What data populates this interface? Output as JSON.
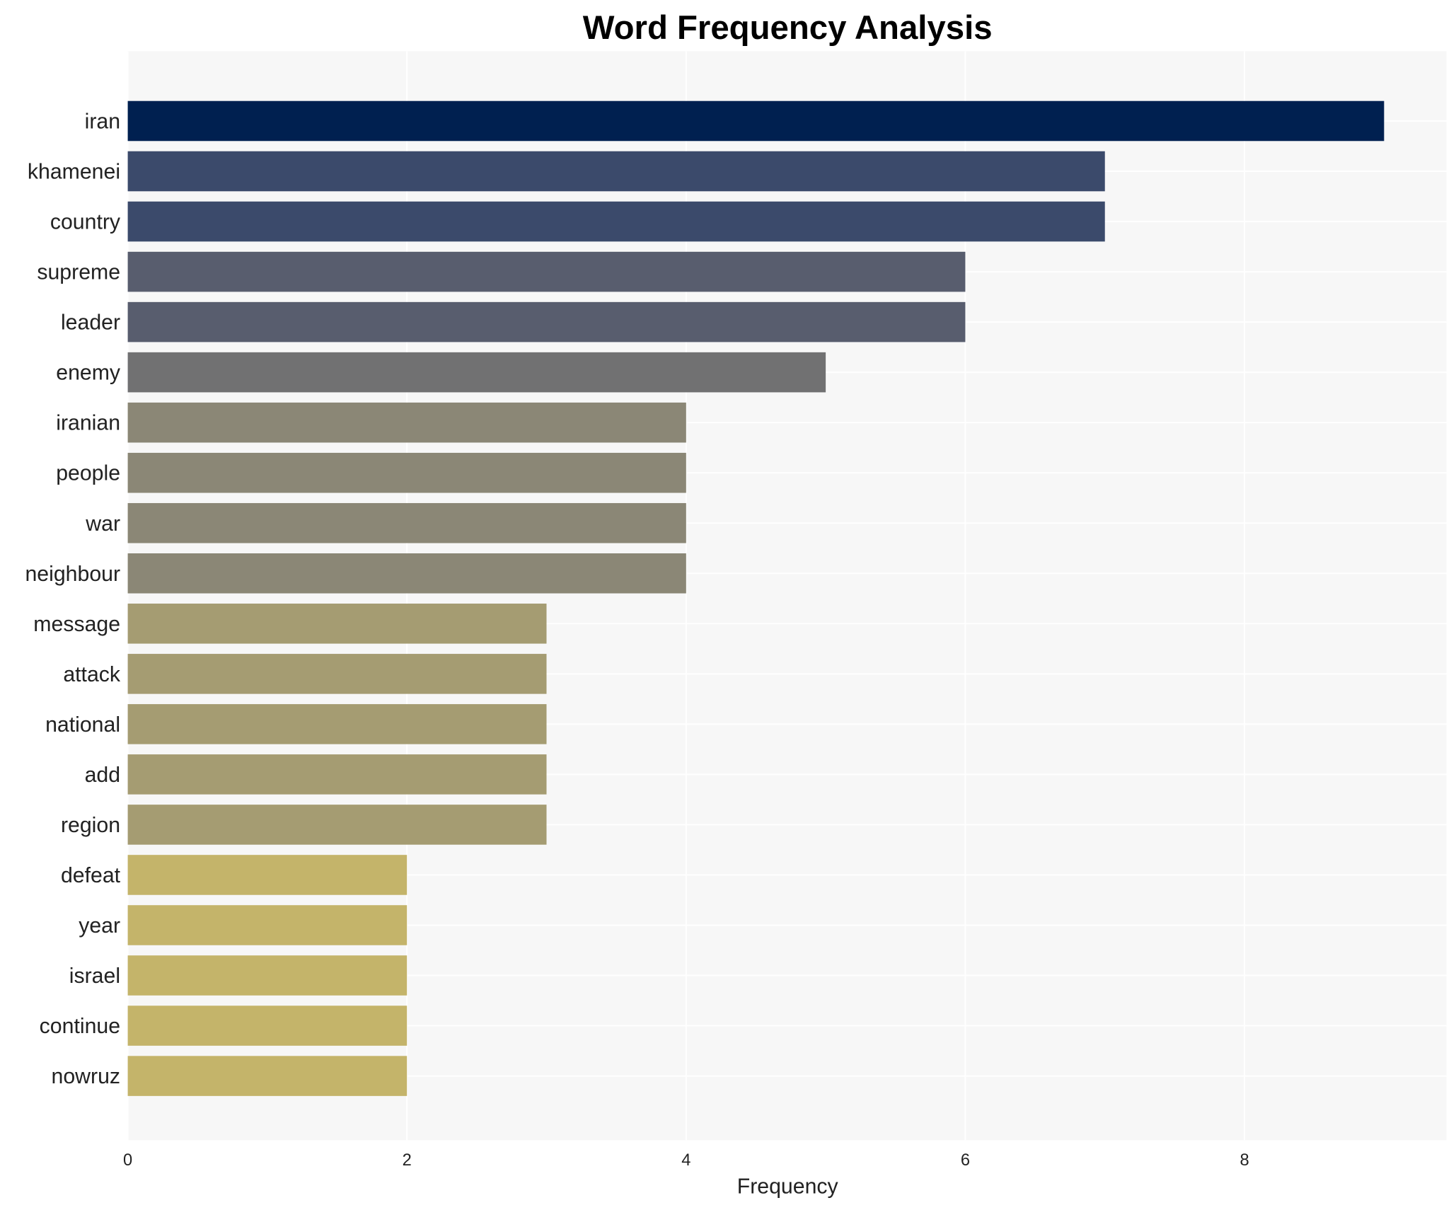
{
  "chart_data": {
    "type": "bar",
    "orientation": "horizontal",
    "title": "Word Frequency Analysis",
    "xlabel": "Frequency",
    "ylabel": "",
    "xlim": [
      0,
      9.45
    ],
    "x_ticks": [
      0,
      2,
      4,
      6,
      8
    ],
    "grid": true,
    "categories": [
      "iran",
      "khamenei",
      "country",
      "supreme",
      "leader",
      "enemy",
      "iranian",
      "people",
      "war",
      "neighbour",
      "message",
      "attack",
      "national",
      "add",
      "region",
      "defeat",
      "year",
      "israel",
      "continue",
      "nowruz"
    ],
    "values": [
      9,
      7,
      7,
      6,
      6,
      5,
      4,
      4,
      4,
      4,
      3,
      3,
      3,
      3,
      3,
      2,
      2,
      2,
      2,
      2
    ],
    "colors_by_value": {
      "9": "#002050",
      "7": "#3b4a6b",
      "6": "#585d6e",
      "5": "#717172",
      "4": "#8b8776",
      "3": "#a59c72",
      "2": "#c4b46a"
    },
    "background": "#f7f7f7"
  }
}
